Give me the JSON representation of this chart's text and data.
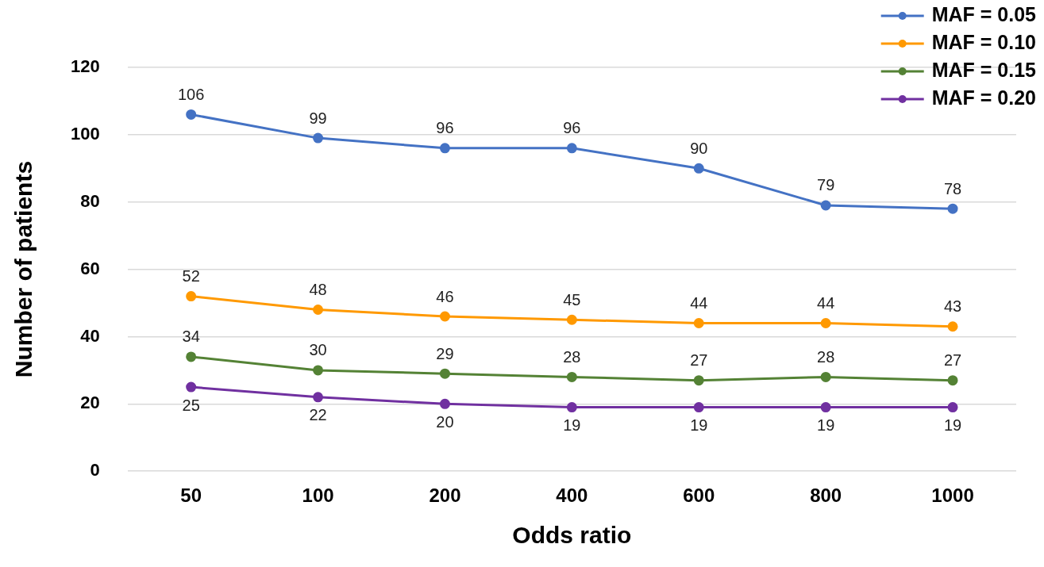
{
  "chart_data": {
    "type": "line",
    "xlabel": "Odds ratio",
    "ylabel": "Number of patients",
    "categories": [
      "50",
      "100",
      "200",
      "400",
      "600",
      "800",
      "1000"
    ],
    "series": [
      {
        "name": "MAF = 0.05",
        "color": "#4472c4",
        "values": [
          106,
          99,
          96,
          96,
          90,
          79,
          78
        ]
      },
      {
        "name": "MAF = 0.10",
        "color": "#ff9900",
        "values": [
          52,
          48,
          46,
          45,
          44,
          44,
          43
        ]
      },
      {
        "name": "MAF = 0.15",
        "color": "#548235",
        "values": [
          34,
          30,
          29,
          28,
          27,
          28,
          27
        ]
      },
      {
        "name": "MAF = 0.20",
        "color": "#7030a0",
        "values": [
          25,
          22,
          20,
          19,
          19,
          19,
          19
        ]
      }
    ],
    "ylim": [
      0,
      120
    ],
    "yticks": [
      0,
      20,
      40,
      60,
      80,
      100,
      120
    ],
    "grid": "y",
    "legend": "top right",
    "marker": "circle",
    "line_style": "solid",
    "data_labels": true
  }
}
